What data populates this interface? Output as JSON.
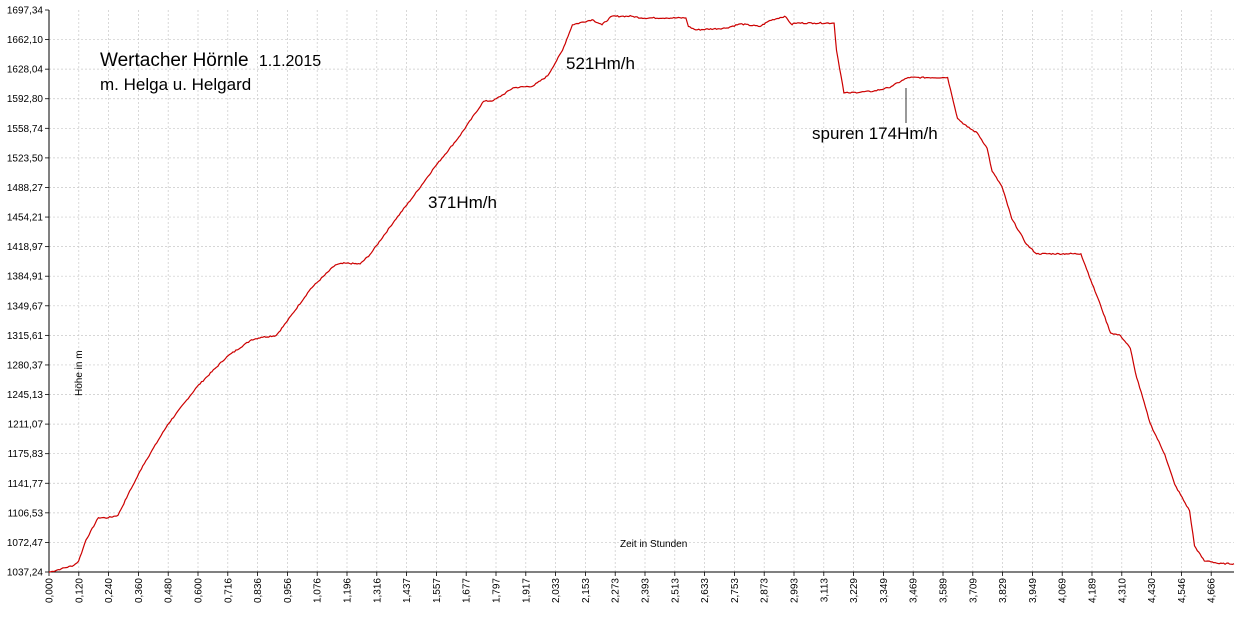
{
  "chart_data": {
    "type": "line",
    "title": "Wertacher Hörnle",
    "title_date": "1.1.2015",
    "subtitle": "m. Helga u. Helgard",
    "xlabel": "Zeit  in  Stunden",
    "ylabel": "Höhe  in  m",
    "xlim": [
      0,
      4.8
    ],
    "ylim": [
      1037.24,
      1697.34
    ],
    "grid": true,
    "line_color": "#cc0000",
    "grid_color": "#c8c8c8",
    "y_ticks": [
      "1697,34",
      "1662,10",
      "1628,04",
      "1592,80",
      "1558,74",
      "1523,50",
      "1488,27",
      "1454,21",
      "1418,97",
      "1384,91",
      "1349,67",
      "1315,61",
      "1280,37",
      "1245,13",
      "1211,07",
      "1175,83",
      "1141,77",
      "1106,53",
      "1072,47",
      "1037,24"
    ],
    "x_ticks": [
      "0,000",
      "0,120",
      "0,240",
      "0,360",
      "0,480",
      "0,600",
      "0,716",
      "0,836",
      "0,956",
      "1,076",
      "1,196",
      "1,316",
      "1,437",
      "1,557",
      "1,677",
      "1,797",
      "1,917",
      "2,033",
      "2,153",
      "2,273",
      "2,393",
      "2,513",
      "2,633",
      "2,753",
      "2,873",
      "2,993",
      "3,113",
      "3,229",
      "3,349",
      "3,469",
      "3,589",
      "3,709",
      "3,829",
      "3,949",
      "4,069",
      "4,189",
      "4,310",
      "4,430",
      "4,546",
      "4,666"
    ],
    "annotations": [
      {
        "text": "371Hm/h"
      },
      {
        "text": "521Hm/h"
      },
      {
        "text": "spuren 174Hm/h"
      }
    ],
    "series": [
      {
        "x": [
          0.0,
          0.05,
          0.1,
          0.12,
          0.15,
          0.2,
          0.24,
          0.28,
          0.32,
          0.34,
          0.38,
          0.48,
          0.6,
          0.72,
          0.82,
          0.86,
          0.92,
          0.96,
          1.06,
          1.16,
          1.2,
          1.26,
          1.3,
          1.4,
          1.48,
          1.56,
          1.66,
          1.76,
          1.8,
          1.84,
          1.88,
          1.96,
          2.02,
          2.08,
          2.12,
          2.2,
          2.24,
          2.28,
          2.32,
          2.36,
          2.4,
          2.5,
          2.58,
          2.59,
          2.62,
          2.74,
          2.8,
          2.88,
          2.92,
          2.98,
          3.01,
          3.02,
          3.1,
          3.18,
          3.19,
          3.22,
          3.24,
          3.34,
          3.4,
          3.48,
          3.62,
          3.64,
          3.68,
          3.72,
          3.76,
          3.8,
          3.82,
          3.86,
          3.9,
          3.96,
          4.0,
          4.12,
          4.18,
          4.22,
          4.26,
          4.3,
          4.34,
          4.38,
          4.4,
          4.46,
          4.52,
          4.56,
          4.62,
          4.64,
          4.68,
          4.7,
          4.74,
          4.8
        ],
        "y": [
          1037,
          1041,
          1045,
          1050,
          1075,
          1101,
          1101,
          1104,
          1128,
          1139,
          1162,
          1210,
          1255,
          1290,
          1310,
          1313,
          1315,
          1330,
          1370,
          1398,
          1400,
          1399,
          1410,
          1450,
          1480,
          1512,
          1548,
          1590,
          1591,
          1598,
          1606,
          1608,
          1620,
          1650,
          1680,
          1686,
          1680,
          1690,
          1690,
          1690,
          1688,
          1688,
          1688,
          1678,
          1674,
          1676,
          1681,
          1678,
          1685,
          1690,
          1680,
          1682,
          1682,
          1682,
          1650,
          1600,
          1600,
          1602,
          1606,
          1618,
          1618,
          1618,
          1570,
          1560,
          1553,
          1535,
          1508,
          1490,
          1452,
          1422,
          1411,
          1411,
          1411,
          1380,
          1350,
          1318,
          1315,
          1300,
          1272,
          1212,
          1175,
          1140,
          1109,
          1068,
          1050,
          1050,
          1047,
          1047
        ]
      }
    ]
  }
}
